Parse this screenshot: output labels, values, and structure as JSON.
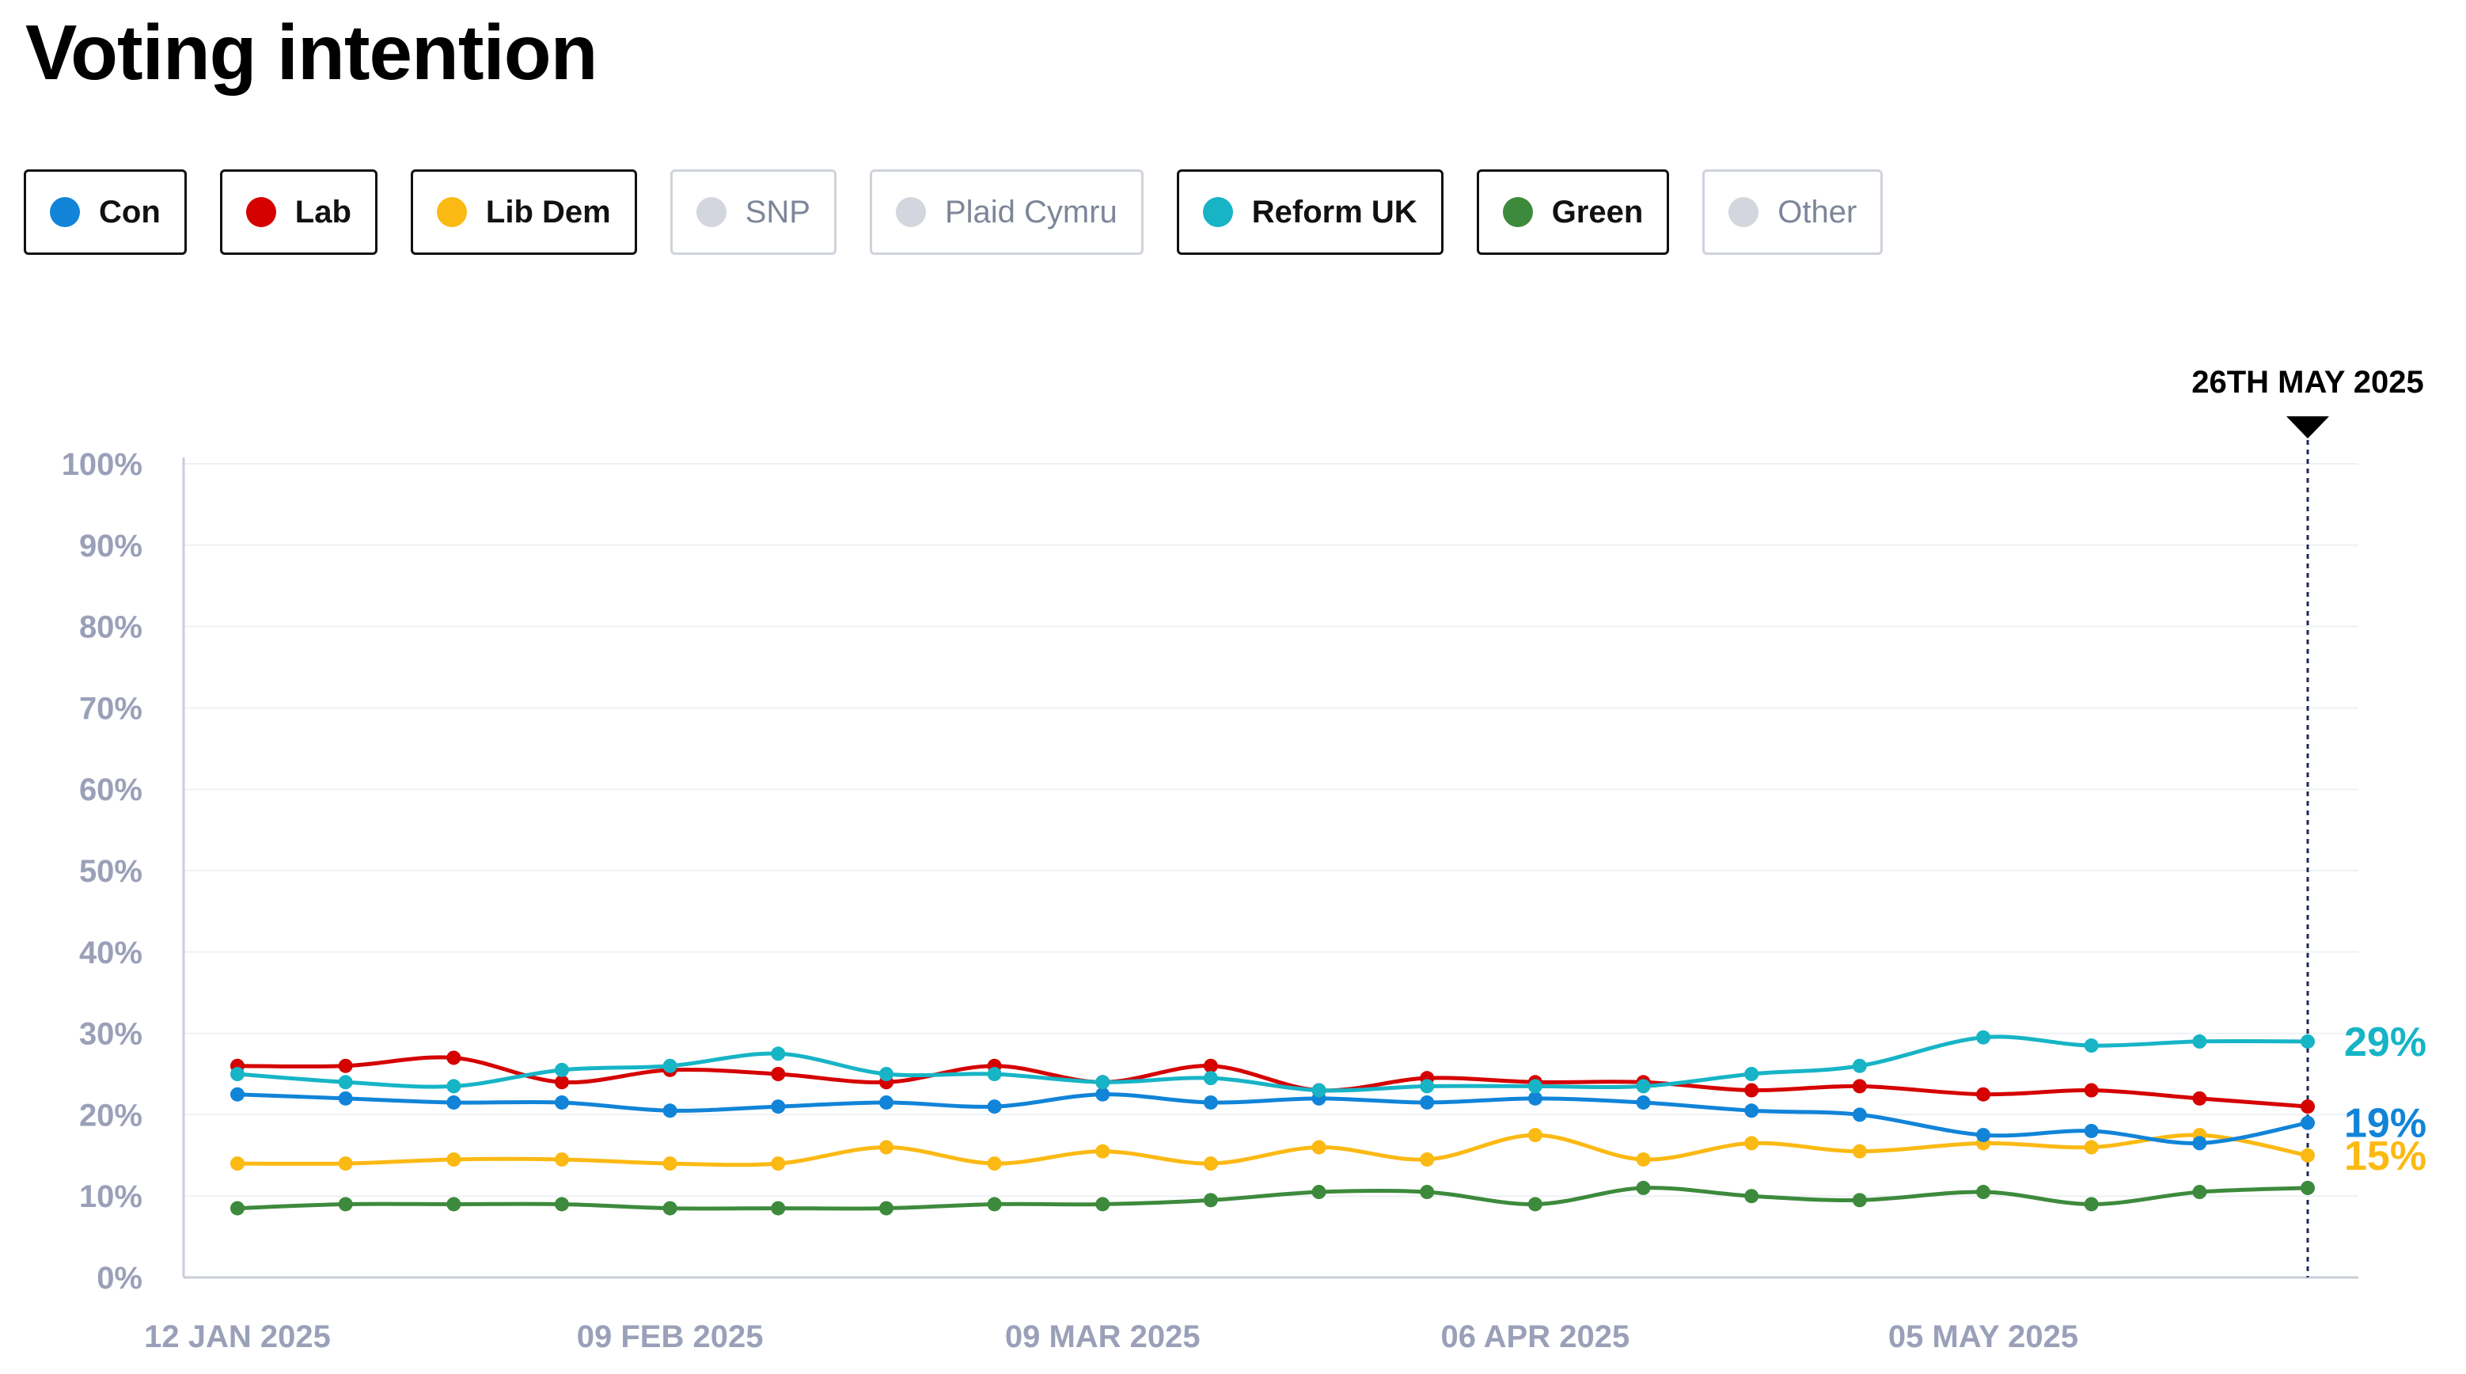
{
  "page": {
    "title": "Voting intention"
  },
  "legend": [
    {
      "label": "Con",
      "color": "#1184d8",
      "active": true
    },
    {
      "label": "Lab",
      "color": "#d50000",
      "active": true
    },
    {
      "label": "Lib Dem",
      "color": "#fbb913",
      "active": true
    },
    {
      "label": "SNP",
      "color": "#d3d6de",
      "active": false
    },
    {
      "label": "Plaid Cymru",
      "color": "#d3d6de",
      "active": false
    },
    {
      "label": "Reform UK",
      "color": "#17b4c6",
      "active": true
    },
    {
      "label": "Green",
      "color": "#3d8a3c",
      "active": true
    },
    {
      "label": "Other",
      "color": "#d3d6de",
      "active": false
    }
  ],
  "chart_data": {
    "type": "line",
    "x": [
      "12 Jan 2025",
      "19 Jan 2025",
      "26 Jan 2025",
      "02 Feb 2025",
      "09 Feb 2025",
      "16 Feb 2025",
      "23 Feb 2025",
      "02 Mar 2025",
      "09 Mar 2025",
      "16 Mar 2025",
      "23 Mar 2025",
      "30 Mar 2025",
      "06 Apr 2025",
      "13 Apr 2025",
      "20 Apr 2025",
      "27 Apr 2025",
      "05 May 2025",
      "12 May 2025",
      "19 May 2025",
      "26 May 2025"
    ],
    "x_tick_labels": [
      "12 JAN 2025",
      "09 FEB 2025",
      "09 MAR 2025",
      "06 APR 2025",
      "05 MAY 2025"
    ],
    "x_tick_dates": [
      "12 Jan 2025",
      "09 Feb 2025",
      "09 Mar 2025",
      "06 Apr 2025",
      "05 May 2025"
    ],
    "y_ticks": [
      "0%",
      "10%",
      "20%",
      "30%",
      "40%",
      "50%",
      "60%",
      "70%",
      "80%",
      "90%",
      "100%"
    ],
    "ylim": [
      0,
      100
    ],
    "grid": true,
    "marker_label": "26TH MAY 2025",
    "series": [
      {
        "name": "Reform UK",
        "color": "#17b4c6",
        "end_label": "29%",
        "values": [
          25,
          24,
          23.5,
          25.5,
          26,
          27.5,
          25,
          25,
          24,
          24.5,
          23,
          23.5,
          23.5,
          23.5,
          25,
          26,
          29.5,
          28.5,
          29,
          29
        ]
      },
      {
        "name": "Lab",
        "color": "#d50000",
        "values": [
          26,
          26,
          27,
          24,
          25.5,
          25,
          24,
          26,
          24,
          26,
          23,
          24.5,
          24,
          24,
          23,
          23.5,
          22.5,
          23,
          22,
          21
        ]
      },
      {
        "name": "Con",
        "color": "#1184d8",
        "end_label": "19%",
        "values": [
          22.5,
          22,
          21.5,
          21.5,
          20.5,
          21,
          21.5,
          21,
          22.5,
          21.5,
          22,
          21.5,
          22,
          21.5,
          20.5,
          20,
          17.5,
          18,
          16.5,
          19
        ]
      },
      {
        "name": "Lib Dem",
        "color": "#fbb913",
        "end_label": "15%",
        "values": [
          14,
          14,
          14.5,
          14.5,
          14,
          14,
          16,
          14,
          15.5,
          14,
          16,
          14.5,
          17.5,
          14.5,
          16.5,
          15.5,
          16.5,
          16,
          17.5,
          15
        ]
      },
      {
        "name": "Green",
        "color": "#3d8a3c",
        "values": [
          8.5,
          9,
          9,
          9,
          8.5,
          8.5,
          8.5,
          9,
          9,
          9.5,
          10.5,
          10.5,
          9,
          11,
          10,
          9.5,
          10.5,
          9,
          10.5,
          11
        ]
      }
    ]
  }
}
